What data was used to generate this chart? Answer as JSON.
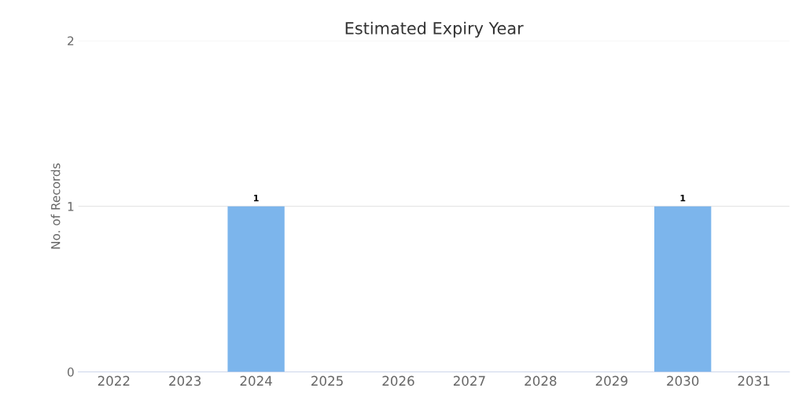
{
  "chart_data": {
    "type": "bar",
    "title": "Estimated Expiry Year",
    "ylabel": "No. of Records",
    "categories": [
      "2022",
      "2023",
      "2024",
      "2025",
      "2026",
      "2027",
      "2028",
      "2029",
      "2030",
      "2031"
    ],
    "values": [
      0,
      0,
      1,
      0,
      0,
      0,
      0,
      0,
      1,
      0
    ],
    "value_labels": [
      null,
      null,
      "1",
      null,
      null,
      null,
      null,
      null,
      "1",
      null
    ],
    "color": "#7cb5ec",
    "ylim": [
      0,
      2
    ],
    "yticks": [
      0,
      1,
      2
    ],
    "grid": "y",
    "legend": false
  }
}
